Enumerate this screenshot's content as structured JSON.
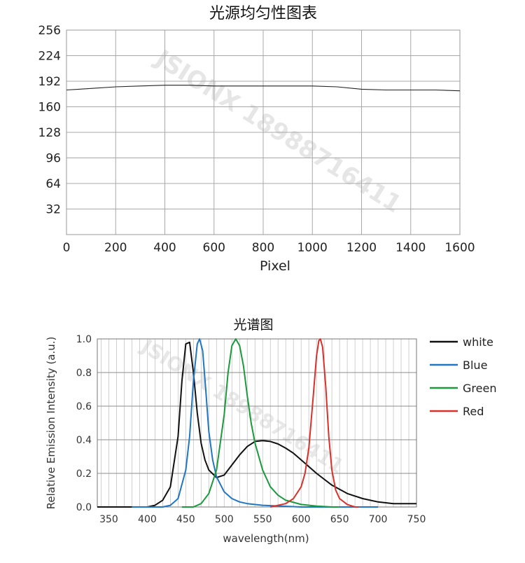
{
  "watermark": "JSIONX 18988716411",
  "colors": {
    "white": "#111111",
    "Blue": "#1f77c4",
    "Green": "#1a9a3c",
    "Red": "#d8312b",
    "grid": "#b5b5b5"
  },
  "chart_data": [
    {
      "type": "line",
      "title": "光源均匀性图表",
      "xlabel": "Pixel",
      "ylabel": "",
      "xlim": [
        0,
        1600
      ],
      "ylim": [
        0,
        256
      ],
      "xticks": [
        0,
        200,
        400,
        600,
        800,
        1000,
        1200,
        1400,
        1600
      ],
      "yticks": [
        32,
        64,
        96,
        128,
        160,
        192,
        224,
        256
      ],
      "grid": true,
      "series": [
        {
          "x": [
            0,
            50,
            100,
            200,
            300,
            400,
            500,
            600,
            700,
            800,
            900,
            1000,
            1100,
            1200,
            1300,
            1400,
            1500,
            1600
          ],
          "y": [
            181,
            182,
            183,
            185,
            186,
            187,
            187,
            186,
            186,
            186,
            186,
            186,
            185,
            182,
            181,
            181,
            181,
            180
          ]
        }
      ]
    },
    {
      "type": "line",
      "title": "光谱图",
      "xlabel": "wavelength(nm)",
      "ylabel": "Relative Emission Intensity (a.u.)",
      "xlim": [
        335,
        750
      ],
      "ylim": [
        0,
        1.0
      ],
      "xticks": [
        350,
        400,
        450,
        500,
        550,
        600,
        650,
        700,
        750
      ],
      "yticks": [
        0.0,
        0.2,
        0.4,
        0.6,
        0.8,
        1.0
      ],
      "ytick_labels": [
        "0.0",
        "0.2",
        "0.4",
        "0.6",
        "0.8",
        "1.0"
      ],
      "grid": true,
      "legend_position": "right",
      "series": [
        {
          "name": "white",
          "x": [
            335,
            400,
            410,
            420,
            430,
            440,
            445,
            450,
            455,
            460,
            465,
            470,
            475,
            480,
            490,
            500,
            510,
            520,
            530,
            540,
            550,
            560,
            570,
            580,
            590,
            600,
            620,
            640,
            660,
            680,
            700,
            720,
            750
          ],
          "y": [
            0.0,
            0.0,
            0.01,
            0.04,
            0.12,
            0.42,
            0.75,
            0.97,
            0.98,
            0.8,
            0.56,
            0.38,
            0.28,
            0.22,
            0.175,
            0.19,
            0.25,
            0.31,
            0.36,
            0.39,
            0.395,
            0.39,
            0.375,
            0.35,
            0.32,
            0.28,
            0.2,
            0.13,
            0.08,
            0.05,
            0.03,
            0.02,
            0.02
          ]
        },
        {
          "name": "Blue",
          "x": [
            380,
            420,
            430,
            440,
            450,
            455,
            460,
            465,
            468,
            472,
            476,
            480,
            485,
            490,
            500,
            510,
            520,
            530,
            550,
            600,
            650,
            700
          ],
          "y": [
            0.0,
            0.0,
            0.01,
            0.05,
            0.22,
            0.42,
            0.75,
            0.97,
            1.0,
            0.93,
            0.7,
            0.45,
            0.28,
            0.18,
            0.09,
            0.05,
            0.03,
            0.02,
            0.01,
            0.0,
            0.0,
            0.0
          ]
        },
        {
          "name": "Green",
          "x": [
            445,
            460,
            470,
            480,
            490,
            500,
            505,
            510,
            515,
            520,
            525,
            530,
            535,
            540,
            550,
            560,
            570,
            580,
            600,
            620,
            640,
            650
          ],
          "y": [
            0.0,
            0.0,
            0.02,
            0.08,
            0.22,
            0.55,
            0.8,
            0.96,
            1.0,
            0.96,
            0.84,
            0.66,
            0.5,
            0.38,
            0.22,
            0.12,
            0.07,
            0.04,
            0.015,
            0.005,
            0.0,
            0.0
          ]
        },
        {
          "name": "Red",
          "x": [
            560,
            580,
            590,
            600,
            605,
            610,
            615,
            620,
            623,
            625,
            628,
            632,
            636,
            640,
            645,
            650,
            660,
            670,
            675
          ],
          "y": [
            0.0,
            0.02,
            0.05,
            0.12,
            0.2,
            0.35,
            0.62,
            0.9,
            0.99,
            1.0,
            0.95,
            0.72,
            0.42,
            0.22,
            0.1,
            0.05,
            0.015,
            0.0,
            0.0
          ]
        }
      ]
    }
  ]
}
